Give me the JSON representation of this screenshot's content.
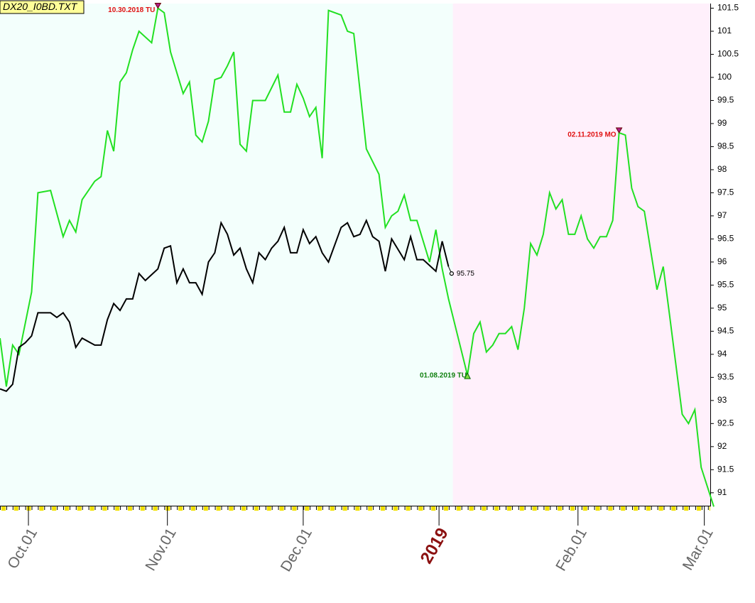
{
  "chart_data": {
    "type": "line",
    "title": "DX20_I0BD.TXT",
    "xlim": [
      0,
      113
    ],
    "ylim": [
      90.72,
      101.6
    ],
    "yticks": [
      91,
      91.5,
      92,
      92.5,
      93,
      93.5,
      94,
      94.5,
      95,
      95.5,
      96,
      96.5,
      97,
      97.5,
      98,
      98.5,
      99,
      99.5,
      100,
      100.5,
      101,
      101.5
    ],
    "xticks": [
      {
        "value": 4.5,
        "label": "Oct.01"
      },
      {
        "value": 26.5,
        "label": "Nov.01"
      },
      {
        "value": 48,
        "label": "Dec.01"
      },
      {
        "value": 69.5,
        "label": "2019",
        "color": "#8b1010"
      },
      {
        "value": 91.5,
        "label": "Feb.01"
      },
      {
        "value": 111.5,
        "label": "Mar.01"
      }
    ],
    "regions": [
      {
        "from": 0,
        "to": 71.7,
        "color": "#f3fffc"
      },
      {
        "from": 71.7,
        "to": 113,
        "color": "#fff0fb"
      }
    ],
    "series": [
      {
        "color": "#22e022",
        "x": [
          0,
          1,
          2,
          3,
          5,
          6,
          8,
          10,
          11,
          12,
          13,
          15,
          16,
          17,
          18,
          19,
          20,
          21,
          22,
          24,
          25,
          26,
          27,
          29,
          30,
          31,
          32,
          33,
          34,
          35,
          36,
          37,
          38,
          39,
          40,
          42,
          44,
          45,
          46,
          47,
          48,
          49,
          50,
          51,
          52,
          54,
          55,
          56,
          58,
          60,
          61,
          62,
          63,
          64,
          65,
          66,
          68,
          69,
          70,
          71,
          74,
          75,
          76,
          77,
          78,
          79,
          80,
          81,
          82,
          83,
          84,
          85,
          86,
          87,
          88,
          89,
          90,
          91,
          92,
          93,
          94,
          95,
          96,
          97,
          98,
          99,
          100,
          101,
          102,
          104,
          105,
          106,
          108,
          109,
          110,
          111,
          113
        ],
        "values": [
          94.35,
          93.3,
          94.2,
          94.0,
          95.35,
          97.5,
          97.55,
          96.55,
          96.9,
          96.65,
          97.35,
          97.75,
          97.85,
          98.85,
          98.4,
          99.9,
          100.1,
          100.6,
          101.0,
          100.75,
          101.5,
          101.4,
          100.55,
          99.65,
          99.9,
          98.75,
          98.6,
          99.05,
          99.95,
          100.0,
          100.25,
          100.55,
          98.55,
          98.4,
          99.5,
          99.5,
          100.05,
          99.25,
          99.25,
          99.85,
          99.55,
          99.15,
          99.35,
          98.25,
          101.45,
          101.35,
          101.0,
          100.95,
          98.45,
          97.9,
          96.75,
          97.0,
          97.1,
          97.45,
          96.9,
          96.9,
          96.0,
          96.7,
          95.85,
          95.2,
          93.55,
          94.45,
          94.7,
          94.05,
          94.2,
          94.45,
          94.45,
          94.6,
          94.1,
          95.0,
          96.4,
          96.15,
          96.6,
          97.5,
          97.15,
          97.35,
          96.6,
          96.6,
          97.0,
          96.5,
          96.3,
          96.55,
          96.55,
          96.9,
          98.8,
          98.75,
          97.6,
          97.2,
          97.1,
          95.4,
          95.9,
          94.85,
          92.7,
          92.5,
          92.8,
          91.55,
          90.7
        ]
      },
      {
        "color": "#000000",
        "x": [
          0,
          1,
          2,
          3,
          4,
          5,
          6,
          8,
          9,
          10,
          11,
          12,
          13,
          15,
          16,
          17,
          18,
          19,
          20,
          21,
          22,
          23,
          25,
          26,
          27,
          28,
          29,
          30,
          31,
          32,
          33,
          34,
          35,
          36,
          37,
          38,
          39,
          40,
          41,
          42,
          43,
          44,
          45,
          46,
          47,
          48,
          49,
          50,
          51,
          52,
          54,
          55,
          56,
          57,
          58,
          59,
          60,
          61,
          62,
          64,
          65,
          66,
          67,
          69,
          70,
          71
        ],
        "values": [
          93.25,
          93.2,
          93.35,
          94.15,
          94.25,
          94.4,
          94.9,
          94.9,
          94.8,
          94.9,
          94.7,
          94.15,
          94.35,
          94.2,
          94.2,
          94.75,
          95.1,
          94.95,
          95.2,
          95.2,
          95.75,
          95.6,
          95.85,
          96.3,
          96.35,
          95.55,
          95.85,
          95.55,
          95.55,
          95.3,
          96.0,
          96.2,
          96.85,
          96.6,
          96.15,
          96.3,
          95.85,
          95.55,
          96.2,
          96.05,
          96.3,
          96.45,
          96.75,
          96.2,
          96.2,
          96.7,
          96.4,
          96.55,
          96.2,
          96.0,
          96.75,
          96.85,
          96.55,
          96.6,
          96.9,
          96.55,
          96.45,
          95.8,
          96.5,
          96.05,
          96.55,
          96.05,
          96.05,
          95.8,
          96.45,
          95.9
        ]
      }
    ],
    "last_value": {
      "x": 71.5,
      "y": 95.75
    },
    "annotations": [
      {
        "text": "10.30.2018 TU",
        "x": 25,
        "y": 101.5,
        "color": "#e01010",
        "marker": "down"
      },
      {
        "text": "02.11.2019 MO",
        "x": 98,
        "y": 98.8,
        "color": "#e01010",
        "marker": "down"
      },
      {
        "text": "01.08.2019 TU",
        "x": 74,
        "y": 93.55,
        "color": "#108010",
        "marker": "up"
      }
    ]
  }
}
